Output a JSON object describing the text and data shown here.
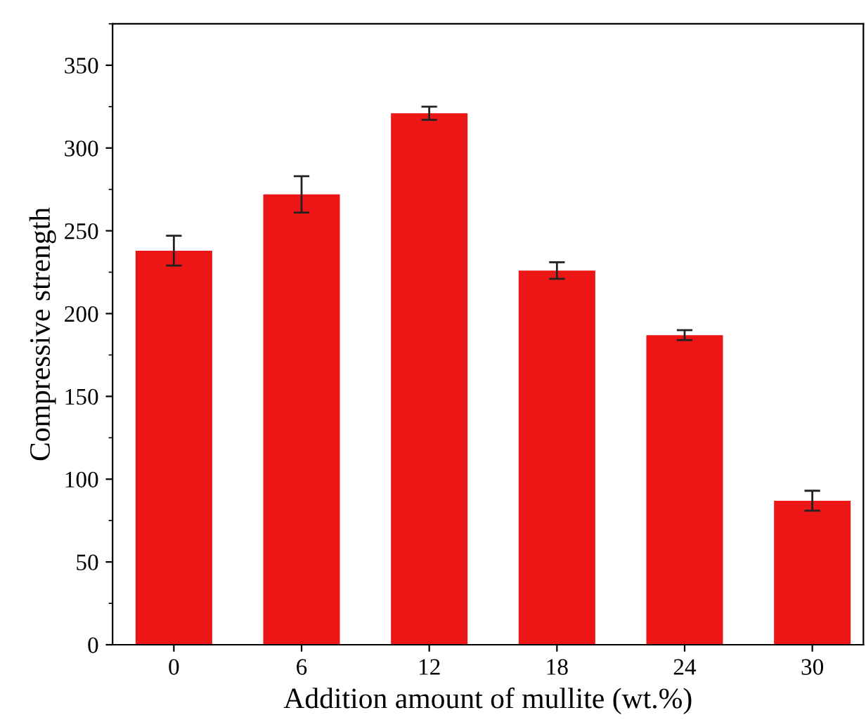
{
  "chart_data": {
    "type": "bar",
    "xlabel": "Addition amount of mullite (wt.%)",
    "ylabel": "Compressive strength",
    "categories": [
      "0",
      "6",
      "12",
      "18",
      "24",
      "30"
    ],
    "values": [
      238,
      272,
      321,
      226,
      187,
      87
    ],
    "errors": [
      9,
      11,
      4,
      5,
      3,
      6
    ],
    "color": "#ec1616",
    "ylim": [
      0,
      375
    ],
    "yticks": [
      0,
      50,
      100,
      150,
      200,
      250,
      300,
      350
    ],
    "grid": false
  }
}
